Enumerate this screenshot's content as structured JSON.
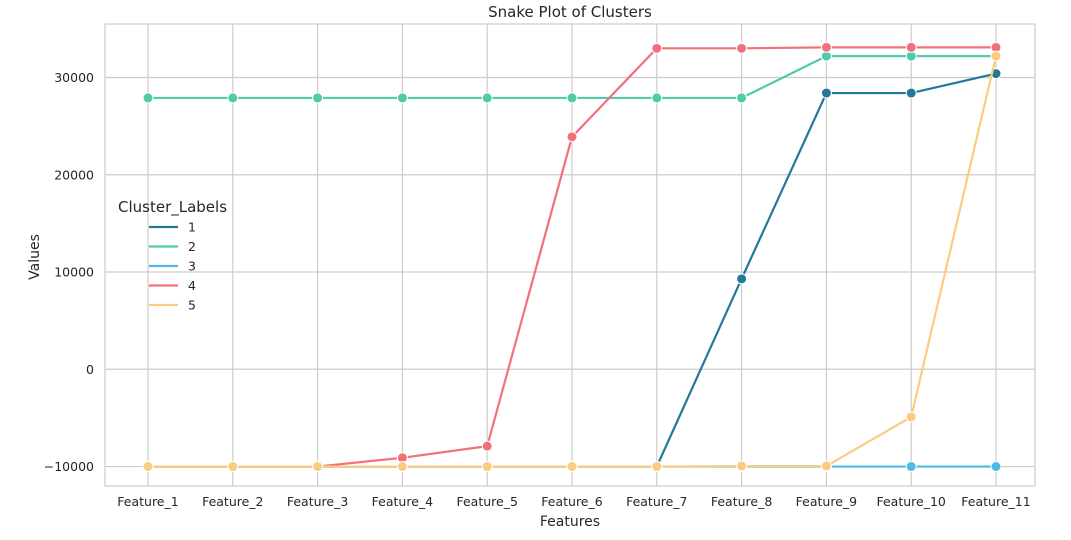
{
  "chart_data": {
    "type": "line",
    "title": "Snake Plot of Clusters",
    "xlabel": "Features",
    "ylabel": "Values",
    "categories": [
      "Feature_1",
      "Feature_2",
      "Feature_3",
      "Feature_4",
      "Feature_5",
      "Feature_6",
      "Feature_7",
      "Feature_8",
      "Feature_9",
      "Feature_10",
      "Feature_11"
    ],
    "ylim": [
      -12000,
      35500
    ],
    "yticks": [
      -10000,
      0,
      10000,
      20000,
      30000
    ],
    "ytick_labels": [
      "−10000",
      "0",
      "10000",
      "20000",
      "30000"
    ],
    "grid": true,
    "legend": {
      "title": "Cluster_Labels",
      "placement": "center-left"
    },
    "series": [
      {
        "name": "1",
        "color": "#23789a",
        "values": [
          -10000,
          -10000,
          -10000,
          -10000,
          -10000,
          -10000,
          -10000,
          9300,
          28400,
          28400,
          30400
        ]
      },
      {
        "name": "2",
        "color": "#4ecba9",
        "values": [
          27900,
          27900,
          27900,
          27900,
          27900,
          27900,
          27900,
          27900,
          32200,
          32200,
          32200
        ]
      },
      {
        "name": "3",
        "color": "#4cbbe6",
        "values": [
          -10000,
          -10000,
          -10000,
          -10000,
          -10000,
          -10000,
          -10000,
          -10000,
          -10000,
          -10000,
          -10000
        ]
      },
      {
        "name": "4",
        "color": "#f2707a",
        "values": [
          -10000,
          -10000,
          -10000,
          -9100,
          -7900,
          23900,
          33000,
          33000,
          33100,
          33100,
          33100
        ]
      },
      {
        "name": "5",
        "color": "#fbcb80",
        "values": [
          -10000,
          -10000,
          -10000,
          -10000,
          -10000,
          -10000,
          -10000,
          -9950,
          -9950,
          -4900,
          32200
        ]
      }
    ]
  }
}
